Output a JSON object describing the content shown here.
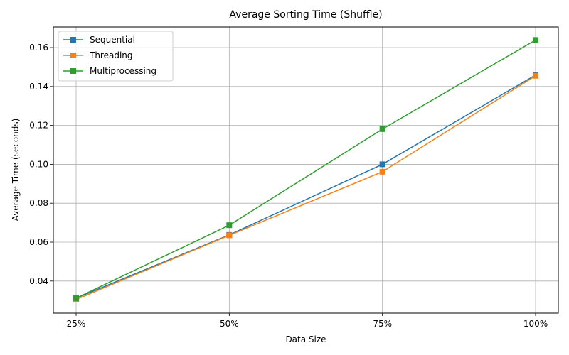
{
  "chart_data": {
    "type": "line",
    "title": "Average Sorting Time (Shuffle)",
    "xlabel": "Data Size",
    "ylabel": "Average Time (seconds)",
    "categories": [
      "25%",
      "50%",
      "75%",
      "100%"
    ],
    "ylim": [
      0.0235,
      0.1706
    ],
    "yticks": [
      "0.04",
      "0.06",
      "0.08",
      "0.10",
      "0.12",
      "0.14",
      "0.16"
    ],
    "grid": true,
    "legend_position": "top-left",
    "marker": "square",
    "series": [
      {
        "name": "Sequential",
        "color": "#1f77b4",
        "values": [
          0.0312,
          0.0637,
          0.1,
          0.1459
        ]
      },
      {
        "name": "Threading",
        "color": "#ff7f0e",
        "values": [
          0.0305,
          0.0635,
          0.0962,
          0.1455
        ]
      },
      {
        "name": "Multiprocessing",
        "color": "#2ca02c",
        "values": [
          0.0312,
          0.0687,
          0.1181,
          0.1639
        ]
      }
    ]
  }
}
